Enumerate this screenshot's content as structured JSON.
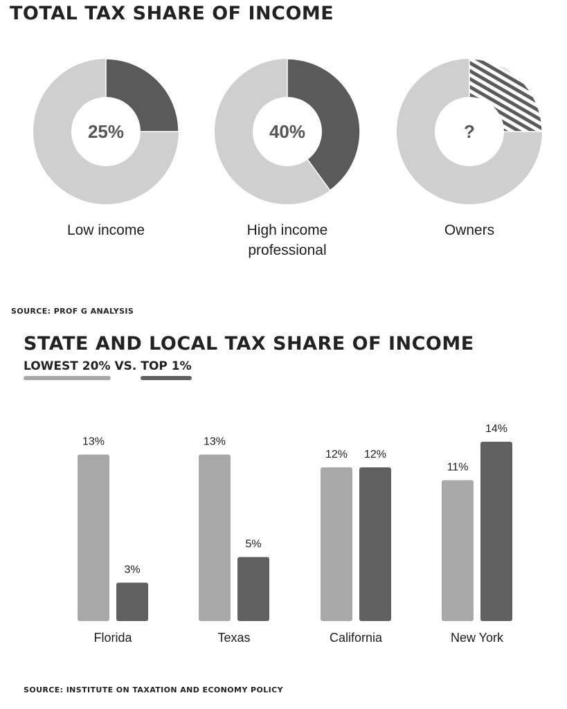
{
  "section1": {
    "title": "Total tax share of income",
    "source": "Source: Prof G Analysis"
  },
  "section2": {
    "title": "State and local tax share of income",
    "source": "Source: Institute on Taxation and Economy Policy"
  },
  "colors": {
    "light": "#a8a8a8",
    "dark": "#606060",
    "donut_rest": "#cfcfcf",
    "donut_dark": "#5a5a5a"
  },
  "chart_data": [
    {
      "type": "pie",
      "title": "Total tax share of income",
      "donut": true,
      "slices": [
        {
          "label": "Low income",
          "value": 25,
          "center_text": "25%"
        },
        {
          "label": "High income professional",
          "value": 40,
          "center_text": "40%"
        },
        {
          "label": "Owners",
          "value": 25,
          "center_text": "?",
          "pattern": "hatched"
        }
      ]
    },
    {
      "type": "bar",
      "title": "State and local tax share of income",
      "legend": {
        "placement": "top-left",
        "separator": "vs."
      },
      "categories": [
        "Florida",
        "Texas",
        "California",
        "New York"
      ],
      "series": [
        {
          "name": "Lowest 20%",
          "values": [
            13,
            13,
            12,
            11
          ],
          "labels": [
            "13%",
            "13%",
            "12%",
            "11%"
          ]
        },
        {
          "name": "Top 1%",
          "values": [
            3,
            5,
            12,
            14
          ],
          "labels": [
            "3%",
            "5%",
            "12%",
            "14%"
          ]
        }
      ],
      "ylim": [
        0,
        15
      ],
      "grid": false
    }
  ]
}
